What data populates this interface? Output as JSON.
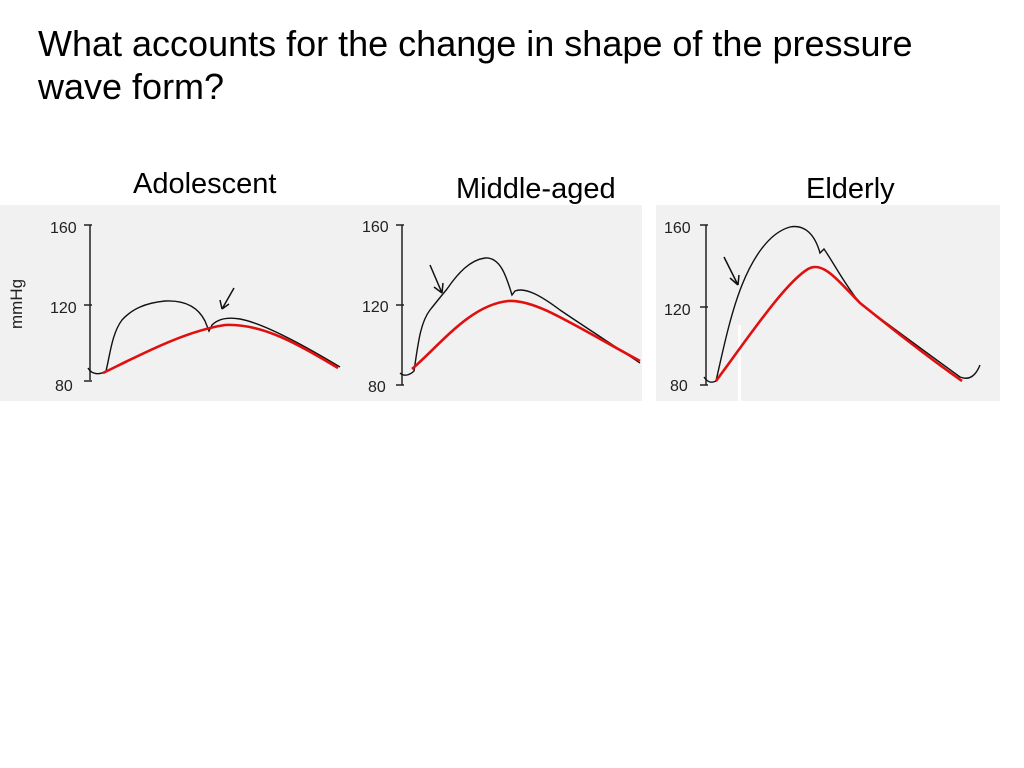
{
  "slide": {
    "title": "What accounts for the change in shape of the pressure wave form?"
  },
  "panels": [
    {
      "label": "Adolescent"
    },
    {
      "label": "Middle-aged"
    },
    {
      "label": "Elderly"
    }
  ],
  "axis": {
    "unit": "mmHg",
    "ticks": [
      "160",
      "120",
      "80"
    ]
  },
  "colors": {
    "trace": "#111111",
    "fitted_curve": "#e01010",
    "background": "#f1f1f1"
  }
}
